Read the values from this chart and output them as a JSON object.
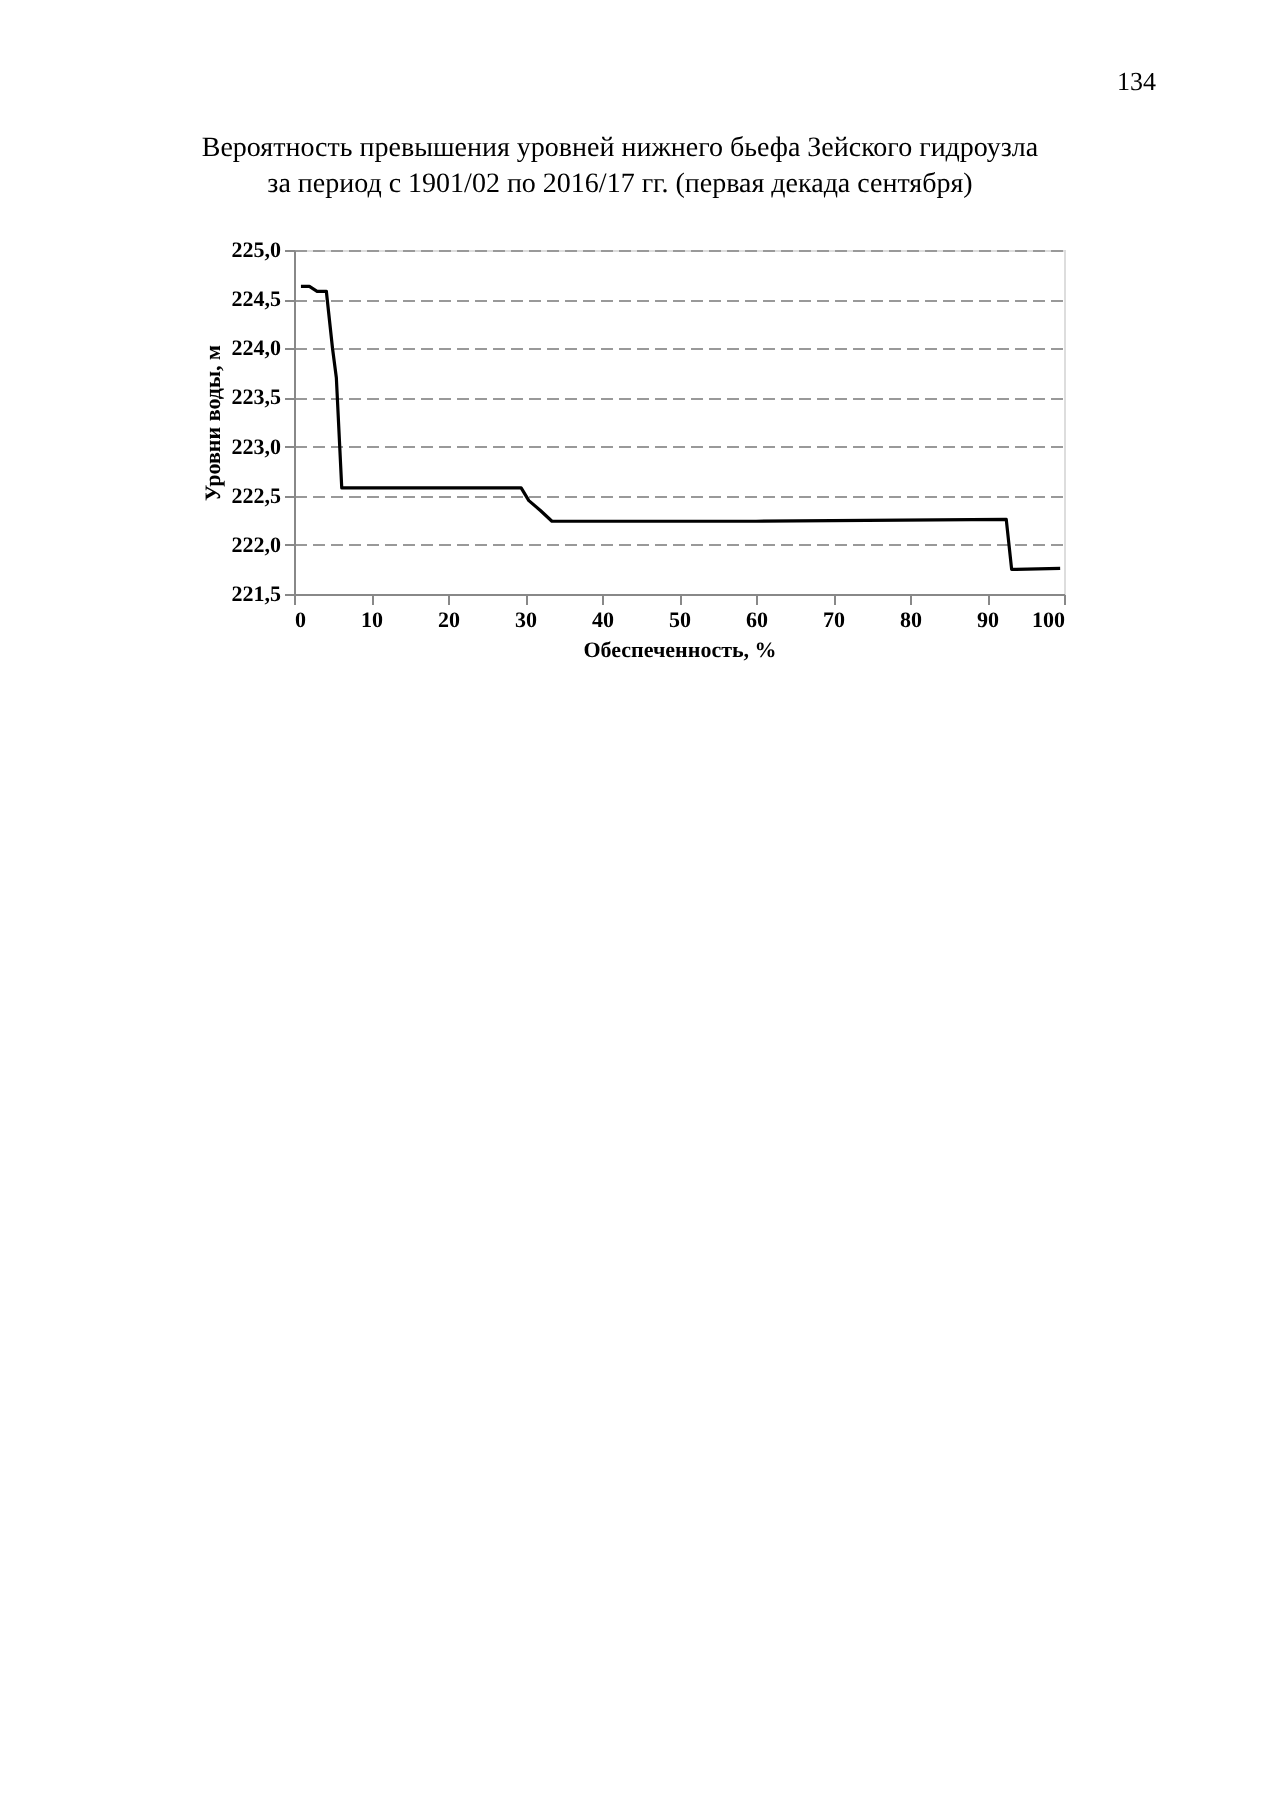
{
  "chart_data": {
    "type": "line",
    "title": "Вероятность превышения уровней нижнего бьефа Зейского гидроузла",
    "subtitle": "за период с 1901/02 по 2016/17 гг. (первая декада сентября)",
    "xlabel": "Обеспеченность, %",
    "ylabel": "Уровни воды, м",
    "annotations": [
      "134"
    ],
    "series": [
      {
        "color": "#000000",
        "x": [
          0.9,
          2,
          3,
          4.2,
          5,
          5.5,
          6.2,
          10,
          29.5,
          30.5,
          32,
          33.5,
          60,
          92.5,
          93.2,
          99.5
        ],
        "values": [
          224.63,
          224.63,
          224.58,
          224.58,
          224.0,
          223.7,
          222.58,
          222.58,
          222.58,
          222.45,
          222.35,
          222.24,
          222.24,
          222.26,
          221.75,
          221.76
        ]
      }
    ],
    "xlim": [
      0,
      100
    ],
    "xticks": [
      0,
      10,
      20,
      30,
      40,
      50,
      60,
      70,
      80,
      90,
      100
    ],
    "ylim": [
      221.5,
      225.0
    ],
    "yticks": [
      {
        "value": 221.5,
        "label": "221,5"
      },
      {
        "value": 222.0,
        "label": "222,0"
      },
      {
        "value": 222.5,
        "label": "222,5"
      },
      {
        "value": 223.0,
        "label": "223,0"
      },
      {
        "value": 223.5,
        "label": "223,5"
      },
      {
        "value": 224.0,
        "label": "224,0"
      },
      {
        "value": 224.5,
        "label": "224,5"
      },
      {
        "value": 225.0,
        "label": "225,0"
      }
    ],
    "grid": "y",
    "marker": "none",
    "line_style": "solid"
  }
}
